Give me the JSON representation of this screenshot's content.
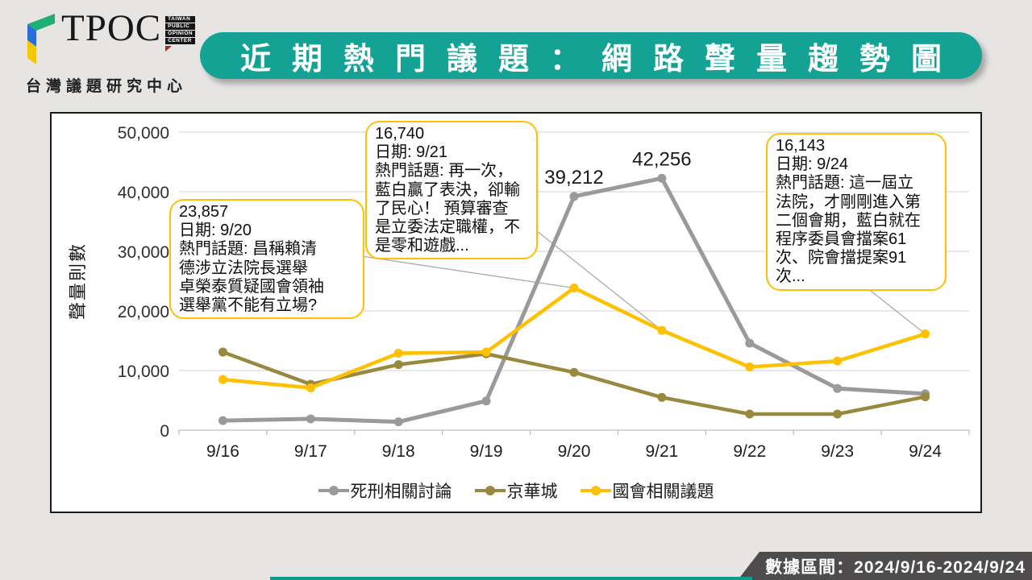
{
  "header": {
    "logo": {
      "brand": "TPOC",
      "badge_lines": [
        "TAIWAN",
        "PUBLIC",
        "OPINION",
        "CENTER"
      ],
      "subtitle": "台灣議題研究中心"
    },
    "title": "近期熱門議題：網路聲量趨勢圖"
  },
  "colors": {
    "accent_teal": "#14a294",
    "callout_border": "#ffc000",
    "footer_bg": "#4e4c4c"
  },
  "chart_data": {
    "type": "line",
    "title": "",
    "xlabel": "",
    "ylabel": "聲量則數",
    "ylim": [
      0,
      50000
    ],
    "grid": true,
    "legend_position": "bottom",
    "categories": [
      "9/16",
      "9/17",
      "9/18",
      "9/19",
      "9/20",
      "9/21",
      "9/22",
      "9/23",
      "9/24"
    ],
    "ytick_values": [
      0,
      10000,
      20000,
      30000,
      40000,
      50000
    ],
    "ytick_labels": [
      "0",
      "10,000",
      "20,000",
      "30,000",
      "40,000",
      "50,000"
    ],
    "series": [
      {
        "name": "死刑相關討論",
        "color": "#9a9a9a",
        "values": [
          1600,
          1900,
          1400,
          4900,
          39212,
          42256,
          14600,
          7000,
          6100
        ]
      },
      {
        "name": "京華城",
        "color": "#98893e",
        "values": [
          13100,
          7700,
          11000,
          12800,
          9700,
          5500,
          2700,
          2700,
          5600
        ]
      },
      {
        "name": "國會相關議題",
        "color": "#ffc000",
        "values": [
          8500,
          7100,
          12900,
          13100,
          23857,
          16740,
          10600,
          11600,
          16143
        ]
      }
    ],
    "point_labels": [
      {
        "series": 0,
        "index": 4,
        "text": "39,212"
      },
      {
        "series": 0,
        "index": 5,
        "text": "42,256"
      }
    ]
  },
  "callouts": [
    {
      "value": "23,857",
      "date": "日期: 9/20",
      "topic": "熱門話題:  昌稱賴清\n德涉立法院長選舉\n卓榮泰質疑國會領袖\n選舉黨不能有立場?",
      "target": {
        "series": 2,
        "index": 4
      }
    },
    {
      "value": "16,740",
      "date": "日期: 9/21",
      "topic": "熱門話題:  再一次，\n藍白贏了表決，卻輸\n了民心！ 預算審查\n是立委法定職權，不\n是零和遊戲...",
      "target": {
        "series": 2,
        "index": 5
      }
    },
    {
      "value": "16,143",
      "date": "日期: 9/24",
      "topic": "熱門話題: 這一屆立\n法院，才剛剛進入第\n二個會期，藍白就在\n程序委員會擋案61\n次、院會擋提案91\n次...",
      "target": {
        "series": 2,
        "index": 8
      }
    }
  ],
  "footer": {
    "label": "數據區間：2024/9/16-2024/9/24"
  }
}
